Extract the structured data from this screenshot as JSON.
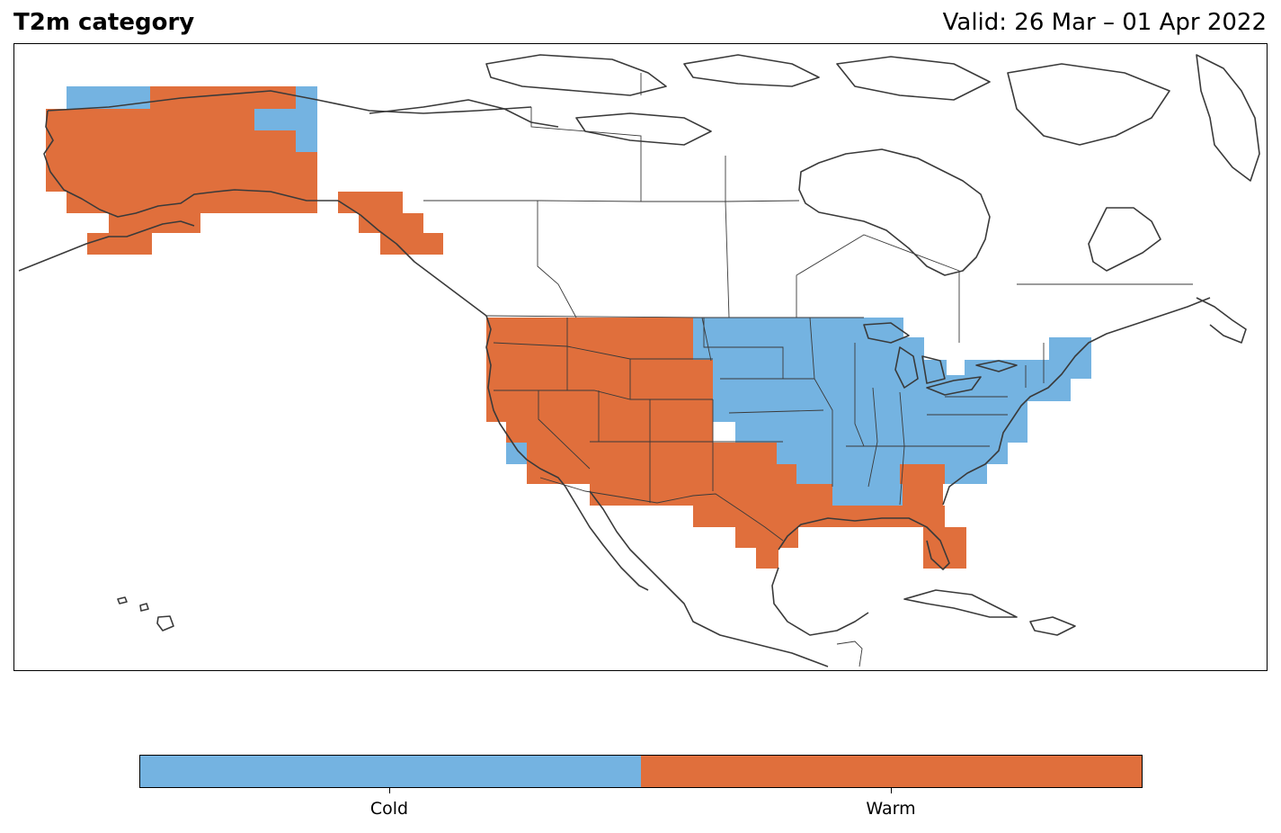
{
  "header": {
    "title": "T2m category",
    "valid": "Valid: 26 Mar – 01 Apr 2022"
  },
  "colors": {
    "cold": "#74b3e1",
    "warm": "#e06f3c",
    "coast": "#3a3a3a"
  },
  "legend": {
    "categories": [
      {
        "label": "Cold",
        "color": "#74b3e1"
      },
      {
        "label": "Warm",
        "color": "#e06f3c"
      }
    ]
  }
}
